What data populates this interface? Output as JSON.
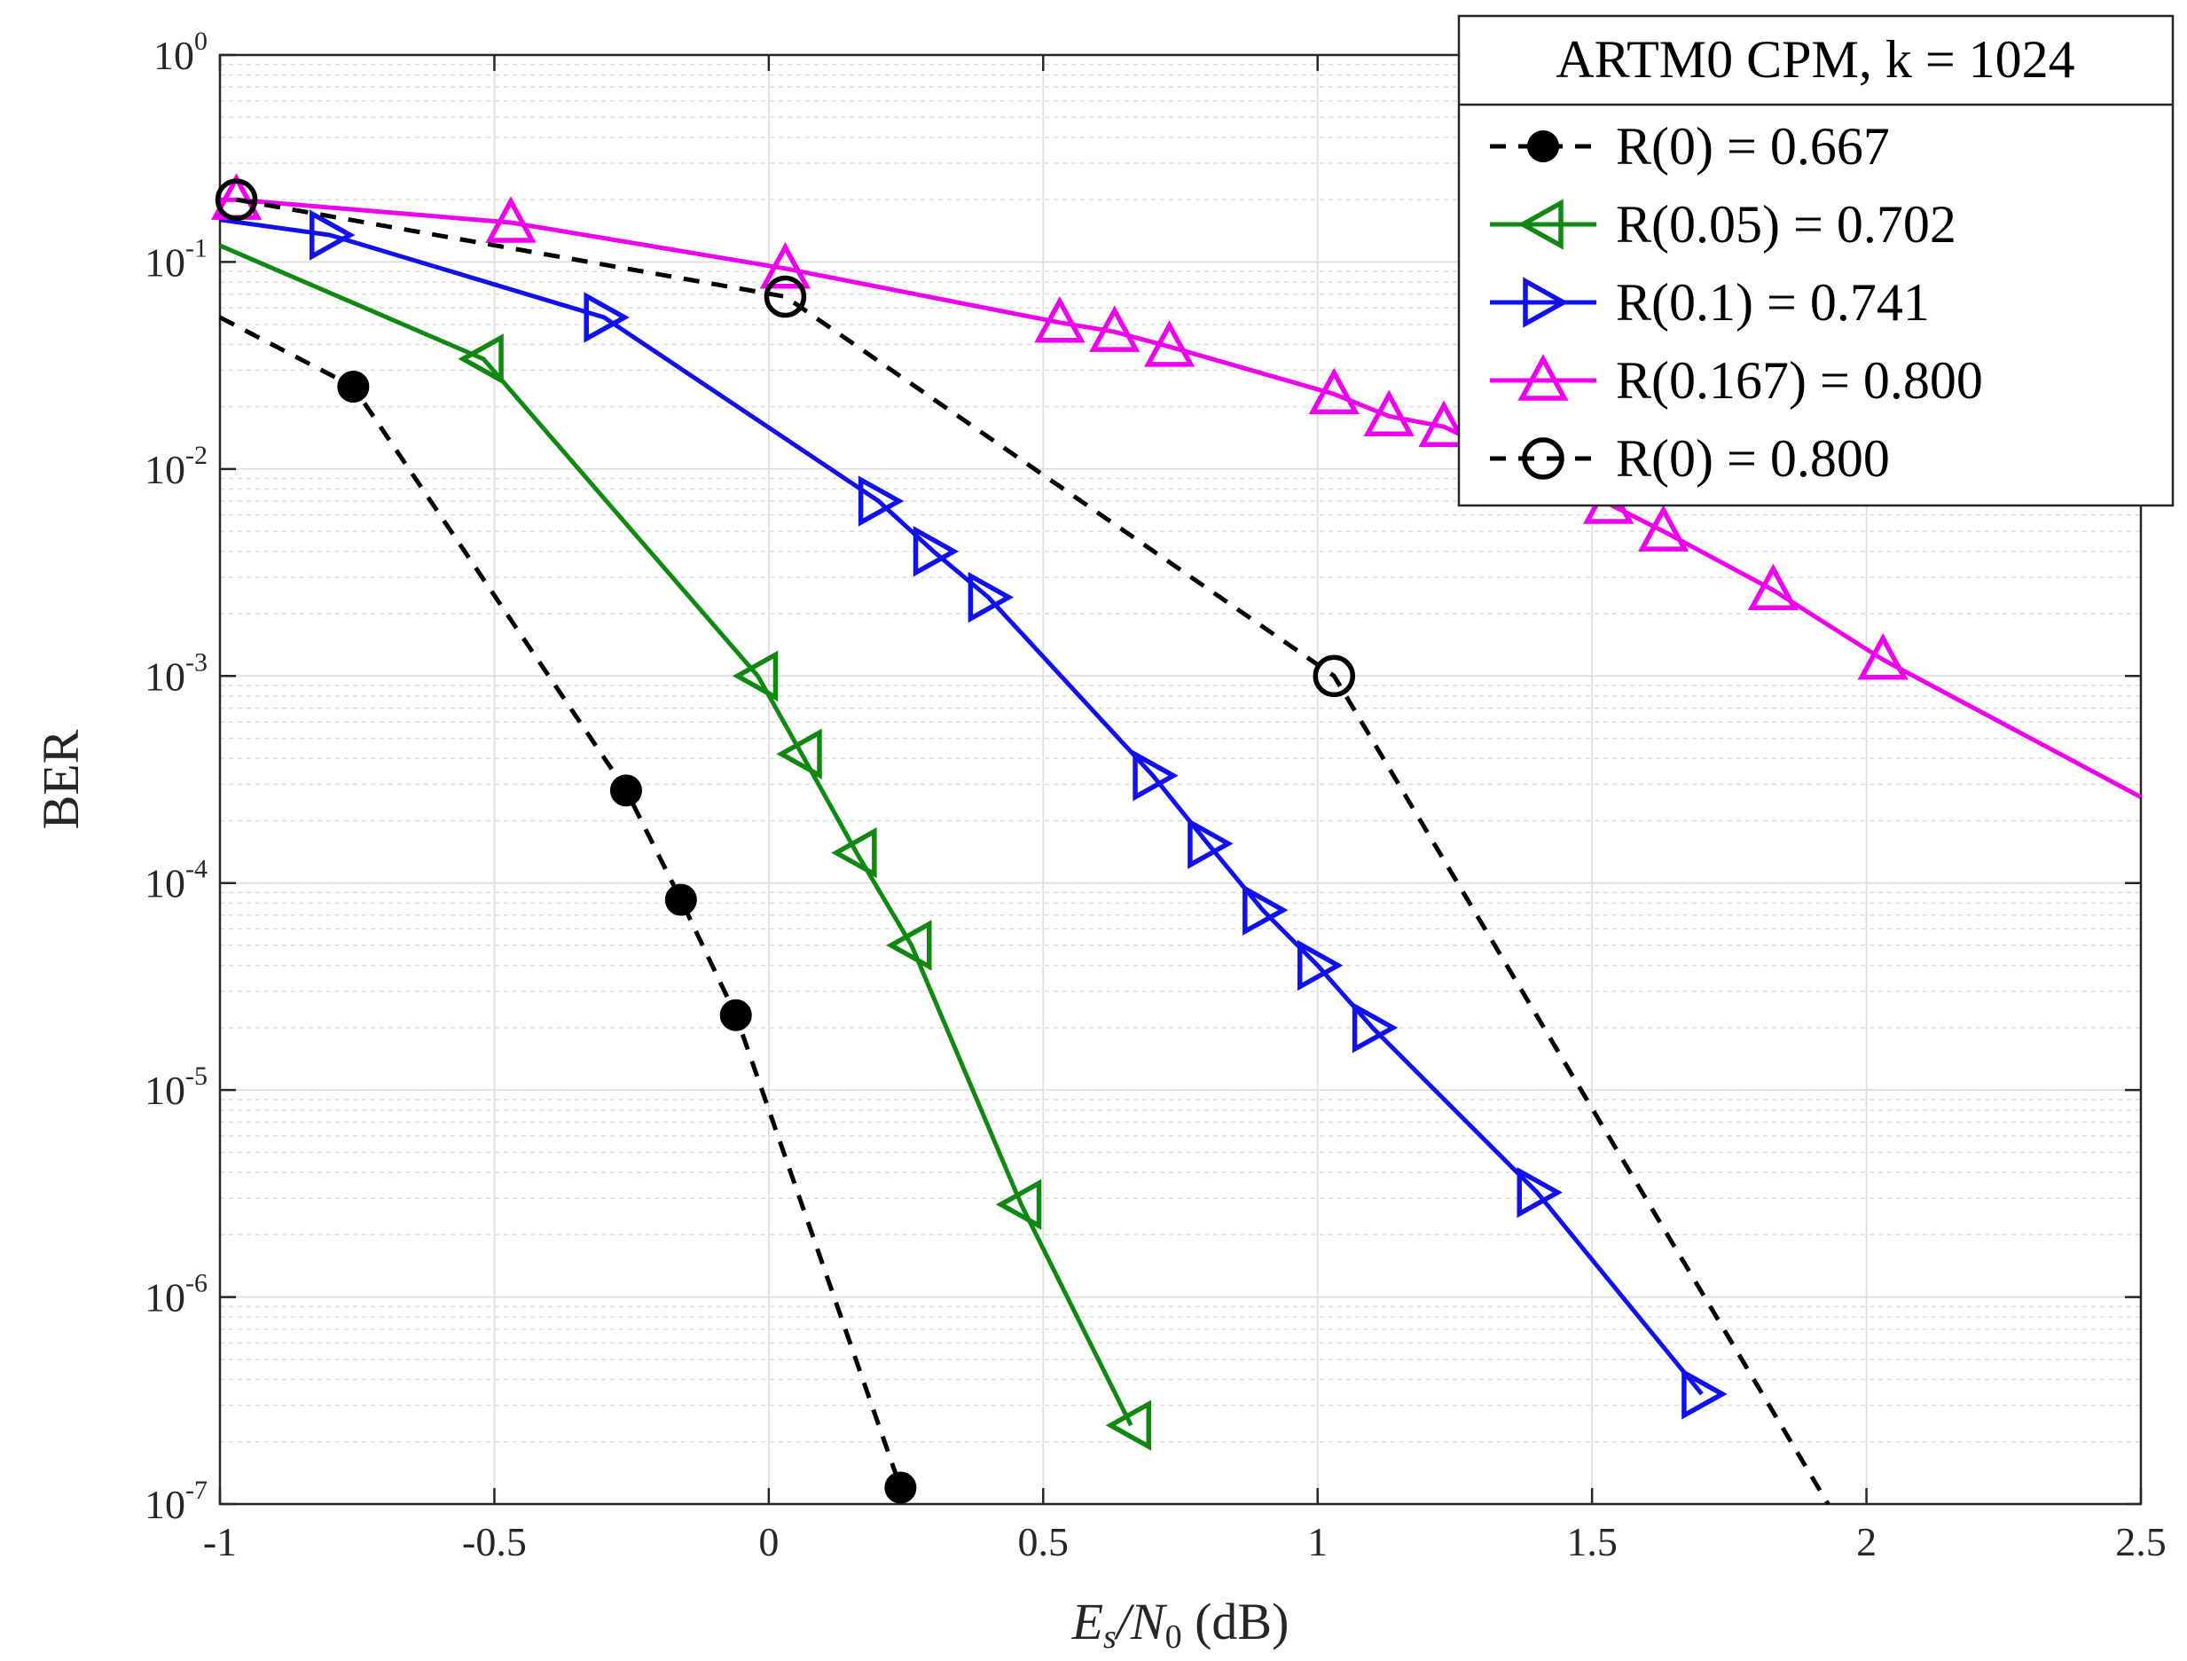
{
  "chart_data": {
    "type": "line",
    "xlabel_main": "E",
    "xlabel_sub1": "s",
    "xlabel_slash": "/N",
    "xlabel_sub2": "0",
    "xlabel_unit": " (dB)",
    "ylabel": "BER",
    "xlim": [
      -1,
      2.5
    ],
    "ylim": [
      1e-07,
      1
    ],
    "yscale": "log",
    "grid": true,
    "x_ticks": [
      -1,
      -0.5,
      0,
      0.5,
      1,
      1.5,
      2,
      2.5
    ],
    "x_tick_labels": [
      "-1",
      "-0.5",
      "0",
      "0.5",
      "1",
      "1.5",
      "2",
      "2.5"
    ],
    "y_tick_base": "10",
    "y_tick_exponents": [
      "-7",
      "-6",
      "-5",
      "-4",
      "-3",
      "-2",
      "-1",
      "0"
    ],
    "legend_title": "ARTM0 CPM, k = 1024",
    "legend_position": "top-right",
    "series": [
      {
        "name": "R(0) = 0.667",
        "color": "#000000",
        "style": "dashed",
        "marker": "filled-circle",
        "x": [
          -1.0,
          -0.757,
          -0.26,
          -0.16,
          -0.06,
          0.24
        ],
        "y": [
          0.054,
          0.025,
          0.00028,
          8.3e-05,
          2.3e-05,
          1.2e-07
        ],
        "markers_x": [
          -0.757,
          -0.26,
          -0.16,
          -0.06,
          0.24
        ],
        "markers_y": [
          0.025,
          0.00028,
          8.3e-05,
          2.3e-05,
          1.2e-07
        ]
      },
      {
        "name": "R(0.05) = 0.702",
        "color": "#118811",
        "style": "solid",
        "marker": "triangle-left",
        "x": [
          -1.0,
          -0.52,
          -0.02,
          0.06,
          0.16,
          0.26,
          0.46,
          0.66
        ],
        "y": [
          0.12,
          0.034,
          0.001,
          0.00042,
          0.00014,
          5e-05,
          2.8e-06,
          2.4e-07
        ],
        "markers_x": [
          -0.52,
          -0.02,
          0.06,
          0.16,
          0.26,
          0.46,
          0.66
        ],
        "markers_y": [
          0.034,
          0.001,
          0.00042,
          0.00014,
          5e-05,
          2.8e-06,
          2.4e-07
        ]
      },
      {
        "name": "R(0.1) = 0.741",
        "color": "#1111ee",
        "style": "solid",
        "marker": "triangle-right",
        "x": [
          -1.0,
          -0.8,
          -0.3,
          0.2,
          0.3,
          0.4,
          0.7,
          0.8,
          0.9,
          1.0,
          1.1,
          1.4,
          1.7
        ],
        "y": [
          0.16,
          0.135,
          0.054,
          0.007,
          0.004,
          0.0024,
          0.00033,
          0.000155,
          7.4e-05,
          4e-05,
          2e-05,
          3.2e-06,
          3.4e-07
        ],
        "markers_x": [
          -0.8,
          -0.3,
          0.2,
          0.3,
          0.4,
          0.7,
          0.8,
          0.9,
          1.0,
          1.1,
          1.4,
          1.7
        ],
        "markers_y": [
          0.135,
          0.054,
          0.007,
          0.004,
          0.0024,
          0.00033,
          0.000155,
          7.4e-05,
          4e-05,
          2e-05,
          3.2e-06,
          3.4e-07
        ]
      },
      {
        "name": "R(0.167) = 0.800",
        "color": "#ee00ee",
        "style": "solid",
        "marker": "triangle-up",
        "x": [
          -1.0,
          -0.97,
          -0.47,
          0.03,
          0.53,
          0.63,
          0.73,
          1.03,
          1.13,
          1.23,
          1.53,
          1.63,
          1.83,
          2.03,
          2.5
        ],
        "y": [
          0.2,
          0.2,
          0.155,
          0.093,
          0.051,
          0.046,
          0.039,
          0.023,
          0.018,
          0.016,
          0.0068,
          0.005,
          0.0026,
          0.0012,
          0.00026
        ],
        "markers_x": [
          -0.97,
          -0.47,
          0.03,
          0.53,
          0.63,
          0.73,
          1.03,
          1.13,
          1.23,
          1.53,
          1.63,
          1.83,
          2.03
        ],
        "markers_y": [
          0.2,
          0.155,
          0.093,
          0.051,
          0.046,
          0.039,
          0.023,
          0.018,
          0.016,
          0.0068,
          0.005,
          0.0026,
          0.0012
        ]
      },
      {
        "name": "R(0) = 0.800",
        "color": "#000000",
        "style": "dashed",
        "marker": "open-circle",
        "x": [
          -0.97,
          0.03,
          1.03,
          1.93
        ],
        "y": [
          0.2,
          0.068,
          0.001,
          1e-07
        ],
        "markers_x": [
          -0.97,
          0.03,
          1.03
        ],
        "markers_y": [
          0.2,
          0.068,
          0.001
        ]
      }
    ]
  }
}
